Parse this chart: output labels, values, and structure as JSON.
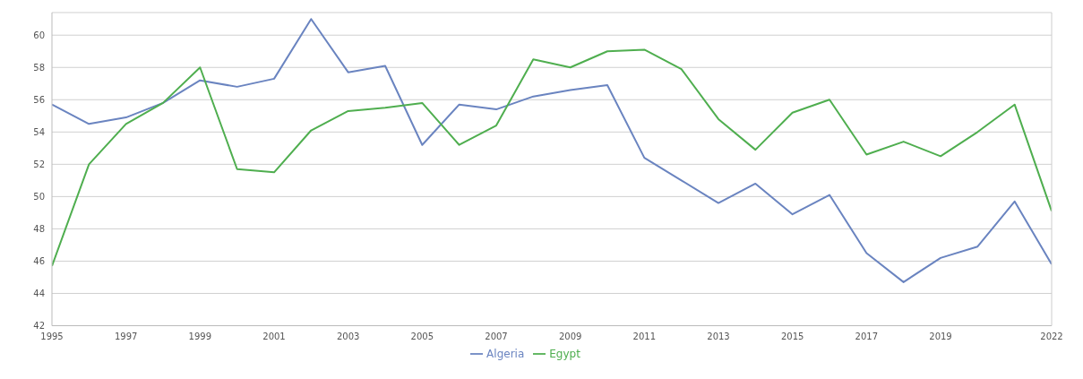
{
  "chart_data": {
    "type": "line",
    "x": [
      1995,
      1996,
      1997,
      1998,
      1999,
      2000,
      2001,
      2002,
      2003,
      2004,
      2005,
      2006,
      2007,
      2008,
      2009,
      2010,
      2011,
      2012,
      2013,
      2014,
      2015,
      2016,
      2017,
      2018,
      2019,
      2020,
      2021,
      2022
    ],
    "series": [
      {
        "name": "Algeria",
        "color": "#6a84c0",
        "values": [
          55.7,
          54.5,
          54.9,
          55.8,
          57.2,
          56.8,
          57.3,
          61.0,
          57.7,
          58.1,
          53.2,
          55.7,
          55.4,
          56.2,
          56.6,
          56.9,
          52.4,
          51.0,
          49.6,
          50.8,
          48.9,
          50.1,
          46.5,
          44.7,
          46.2,
          46.9,
          49.7,
          45.8
        ]
      },
      {
        "name": "Egypt",
        "color": "#4fae4f",
        "values": [
          45.7,
          52.0,
          54.5,
          55.8,
          58.0,
          51.7,
          51.5,
          54.1,
          55.3,
          55.5,
          55.8,
          53.2,
          54.4,
          58.5,
          58.0,
          59.0,
          59.1,
          57.9,
          54.8,
          52.9,
          55.2,
          56.0,
          52.6,
          53.4,
          52.5,
          54.0,
          55.7,
          49.1
        ]
      }
    ],
    "xlim": [
      1995,
      2022
    ],
    "xticks": [
      1995,
      1997,
      1999,
      2001,
      2003,
      2005,
      2007,
      2009,
      2011,
      2013,
      2015,
      2017,
      2019,
      2022
    ],
    "ylim": [
      42,
      61.4
    ],
    "yticks": [
      42,
      44,
      46,
      48,
      50,
      52,
      54,
      56,
      58,
      60
    ],
    "grid": "y",
    "legend": "bottom",
    "marker": "none",
    "line_style": "solid"
  }
}
